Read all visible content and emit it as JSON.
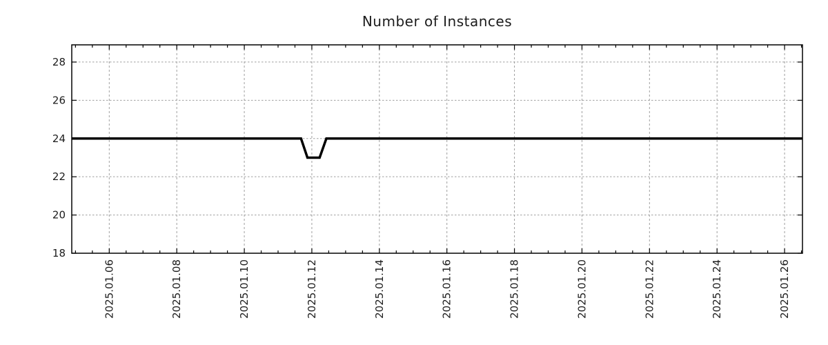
{
  "chart_data": {
    "type": "line",
    "title": "Number of Instances",
    "xlabel": "",
    "ylabel": "",
    "legend": "none",
    "grid": true,
    "colors": {
      "line": "#000000",
      "grid": "#9e9e9e",
      "frame": "#000000",
      "text": "#1c1c1c",
      "background": "#ffffff"
    },
    "x_axis": {
      "unit": "day of January 2025",
      "lim_days": [
        4.89,
        26.53
      ],
      "tick_days": [
        6,
        8,
        10,
        12,
        14,
        16,
        18,
        20,
        22,
        24,
        26
      ],
      "tick_labels": [
        "2025.01.06",
        "2025.01.08",
        "2025.01.10",
        "2025.01.12",
        "2025.01.14",
        "2025.01.16",
        "2025.01.18",
        "2025.01.20",
        "2025.01.22",
        "2025.01.24",
        "2025.01.26"
      ],
      "minor_tick_step_days": 0.5,
      "label_rotation_deg": -90
    },
    "y_axis": {
      "lim": [
        18,
        28.9
      ],
      "ticks": [
        18,
        20,
        22,
        24,
        26,
        28
      ]
    },
    "series": [
      {
        "name": "Number of Instances",
        "baseline_value": 24,
        "dip_value": 23,
        "points_day_value": [
          [
            4.89,
            24
          ],
          [
            11.68,
            24
          ],
          [
            11.87,
            23
          ],
          [
            12.23,
            23
          ],
          [
            12.43,
            24
          ],
          [
            26.53,
            24
          ]
        ]
      }
    ]
  }
}
